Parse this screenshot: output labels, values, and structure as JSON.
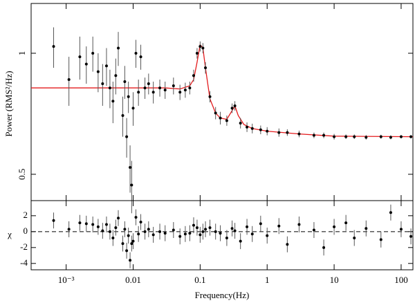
{
  "chart_data": [
    {
      "type": "scatter",
      "ylabel": "Power (RMS²/Hz)",
      "xlog": true,
      "ylog": true,
      "xlim": [
        0.0003,
        150
      ],
      "ylim": [
        0.43,
        1.33
      ],
      "yticks": [
        0.5,
        1
      ],
      "color": "#000000",
      "x": [
        0.00065,
        0.0011,
        0.0016,
        0.002,
        0.0025,
        0.003,
        0.0035,
        0.004,
        0.0045,
        0.005,
        0.0055,
        0.006,
        0.007,
        0.0075,
        0.008,
        0.0085,
        0.009,
        0.0095,
        0.01,
        0.011,
        0.012,
        0.013,
        0.015,
        0.017,
        0.02,
        0.025,
        0.03,
        0.04,
        0.05,
        0.06,
        0.07,
        0.08,
        0.09,
        0.1,
        0.11,
        0.12,
        0.14,
        0.17,
        0.2,
        0.25,
        0.3,
        0.33,
        0.4,
        0.5,
        0.6,
        0.8,
        1,
        1.5,
        2,
        3,
        5,
        7,
        10,
        15,
        20,
        30,
        50,
        70,
        100,
        140
      ],
      "values": [
        1.04,
        0.86,
        0.98,
        0.94,
        1.0,
        0.9,
        0.84,
        0.93,
        0.82,
        0.76,
        0.88,
        1.03,
        0.7,
        0.85,
        0.62,
        0.78,
        0.52,
        0.47,
        0.73,
        1.0,
        0.8,
        0.98,
        0.82,
        0.84,
        0.8,
        0.82,
        0.81,
        0.83,
        0.8,
        0.81,
        0.82,
        0.88,
        1.0,
        1.04,
        1.03,
        0.92,
        0.78,
        0.71,
        0.69,
        0.68,
        0.73,
        0.74,
        0.67,
        0.655,
        0.65,
        0.645,
        0.64,
        0.635,
        0.635,
        0.63,
        0.625,
        0.625,
        0.62,
        0.62,
        0.62,
        0.618,
        0.62,
        0.618,
        0.62,
        0.62
      ],
      "errors": [
        0.12,
        0.12,
        0.12,
        0.1,
        0.1,
        0.1,
        0.1,
        0.1,
        0.09,
        0.09,
        0.09,
        0.1,
        0.08,
        0.08,
        0.07,
        0.07,
        0.07,
        0.07,
        0.07,
        0.08,
        0.06,
        0.07,
        0.05,
        0.05,
        0.05,
        0.04,
        0.04,
        0.04,
        0.035,
        0.035,
        0.03,
        0.03,
        0.03,
        0.03,
        0.03,
        0.03,
        0.025,
        0.025,
        0.025,
        0.02,
        0.02,
        0.02,
        0.02,
        0.018,
        0.018,
        0.016,
        0.015,
        0.015,
        0.012,
        0.012,
        0.01,
        0.01,
        0.01,
        0.008,
        0.008,
        0.008,
        0.007,
        0.007,
        0.006,
        0.006
      ],
      "model": {
        "color": "#e41a1c",
        "x": [
          0.0003,
          0.03,
          0.05,
          0.07,
          0.08,
          0.09,
          0.1,
          0.11,
          0.12,
          0.14,
          0.17,
          0.2,
          0.25,
          0.3,
          0.33,
          0.37,
          0.45,
          0.6,
          1,
          3,
          10,
          150
        ],
        "values": [
          0.82,
          0.82,
          0.815,
          0.83,
          0.86,
          0.95,
          1.05,
          1.03,
          0.92,
          0.77,
          0.71,
          0.69,
          0.685,
          0.72,
          0.74,
          0.7,
          0.665,
          0.65,
          0.64,
          0.63,
          0.622,
          0.62
        ]
      }
    },
    {
      "type": "residuals",
      "ylabel": "χ",
      "xlabel": "Frequency(Hz)",
      "xlog": true,
      "xlim": [
        0.0003,
        150
      ],
      "ylim": [
        -4.8,
        3.9
      ],
      "yticks": [
        -4,
        -2,
        0,
        2
      ],
      "color": "#000000",
      "xticks": [
        {
          "value": 0.001,
          "label": "10⁻³"
        },
        0.01,
        0.1,
        1,
        10,
        100
      ],
      "x": [
        0.00065,
        0.0011,
        0.0016,
        0.002,
        0.0025,
        0.003,
        0.0035,
        0.004,
        0.0045,
        0.005,
        0.0055,
        0.006,
        0.007,
        0.0075,
        0.008,
        0.0085,
        0.009,
        0.0095,
        0.01,
        0.011,
        0.012,
        0.013,
        0.015,
        0.017,
        0.02,
        0.025,
        0.03,
        0.04,
        0.05,
        0.06,
        0.07,
        0.08,
        0.09,
        0.1,
        0.11,
        0.12,
        0.14,
        0.17,
        0.2,
        0.25,
        0.3,
        0.33,
        0.4,
        0.5,
        0.6,
        0.8,
        1,
        1.5,
        2,
        3,
        5,
        7,
        10,
        15,
        20,
        30,
        50,
        70,
        100,
        140
      ],
      "values": [
        1.4,
        0.3,
        1.1,
        1.0,
        0.9,
        0.6,
        0.1,
        0.9,
        0.0,
        -0.8,
        0.5,
        1.7,
        -1.5,
        0.3,
        -2.4,
        -0.5,
        -3.6,
        -1.5,
        -1.2,
        1.8,
        -0.3,
        1.2,
        0.0,
        0.3,
        -0.4,
        0.0,
        -0.2,
        0.2,
        -0.6,
        -0.3,
        -0.2,
        0.8,
        0.5,
        -0.4,
        0.0,
        0.3,
        0.5,
        0.0,
        -0.2,
        -0.8,
        0.4,
        0.1,
        -1.2,
        0.6,
        -0.3,
        1.0,
        -0.5,
        0.7,
        -1.6,
        0.9,
        0.2,
        -2.0,
        0.6,
        1.1,
        -0.8,
        0.4,
        -1.0,
        2.4,
        0.3,
        -0.6
      ],
      "errors": [
        1,
        1,
        1,
        1,
        1,
        1,
        1,
        1,
        1,
        1,
        1,
        1,
        1,
        1,
        1,
        1,
        1,
        1,
        1,
        1,
        1,
        1,
        1,
        1,
        1,
        1,
        1,
        1,
        1,
        1,
        1,
        1,
        1,
        1,
        1,
        1,
        1,
        1,
        1,
        1,
        1,
        1,
        1,
        1,
        1,
        1,
        1,
        1,
        1,
        1,
        1,
        1,
        1,
        1,
        1,
        1,
        1,
        1,
        1,
        1
      ]
    }
  ]
}
